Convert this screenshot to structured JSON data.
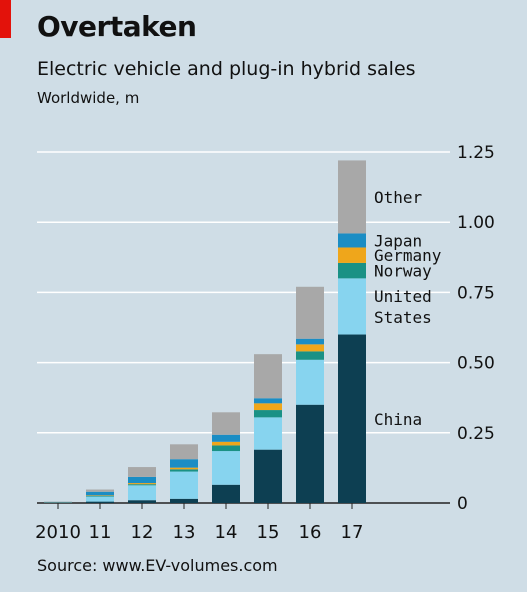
{
  "header": {
    "title": "Overtaken",
    "subtitle": "Electric vehicle and plug-in hybrid sales",
    "unit": "Worldwide, m"
  },
  "source": "Source: www.EV-volumes.com",
  "colors": {
    "background": "#cfdde6",
    "accent": "#e3120b",
    "China": "#0d3f52",
    "United States": "#87d4ef",
    "Norway": "#1a9185",
    "Germany": "#efa61b",
    "Japan": "#1b8dc4",
    "Other": "#a8a8a8"
  },
  "chart_data": {
    "type": "bar",
    "stacked": true,
    "title": "Overtaken",
    "subtitle": "Electric vehicle and plug-in hybrid sales",
    "ylabel": "Worldwide, m",
    "categories": [
      "2010",
      "11",
      "12",
      "13",
      "14",
      "15",
      "16",
      "17"
    ],
    "ylim": [
      0,
      1.25
    ],
    "yticks": [
      0,
      0.25,
      0.5,
      0.75,
      1.0,
      1.25
    ],
    "ytick_labels": [
      "0",
      "0.25",
      "0.50",
      "0.75",
      "1.00",
      "1.25"
    ],
    "y_axis_side": "right",
    "grid": true,
    "series": [
      {
        "name": "China",
        "values": [
          0.001,
          0.005,
          0.01,
          0.015,
          0.065,
          0.19,
          0.35,
          0.6
        ]
      },
      {
        "name": "United States",
        "values": [
          0.001,
          0.018,
          0.053,
          0.097,
          0.12,
          0.115,
          0.16,
          0.2
        ]
      },
      {
        "name": "Norway",
        "values": [
          0.0005,
          0.002,
          0.004,
          0.008,
          0.02,
          0.026,
          0.03,
          0.055
        ]
      },
      {
        "name": "Germany",
        "values": [
          0.0005,
          0.002,
          0.004,
          0.006,
          0.013,
          0.024,
          0.025,
          0.055
        ]
      },
      {
        "name": "Japan",
        "values": [
          0.001,
          0.013,
          0.022,
          0.03,
          0.025,
          0.018,
          0.02,
          0.05
        ]
      },
      {
        "name": "Other",
        "values": [
          0.001,
          0.008,
          0.035,
          0.053,
          0.08,
          0.157,
          0.185,
          0.26
        ]
      }
    ],
    "segment_labels": [
      {
        "series": "China",
        "lines": [
          "China"
        ]
      },
      {
        "series": "United States",
        "lines": [
          "United",
          "States"
        ]
      },
      {
        "series": "Norway",
        "lines": [
          "Norway"
        ]
      },
      {
        "series": "Germany",
        "lines": [
          "Germany"
        ]
      },
      {
        "series": "Japan",
        "lines": [
          "Japan"
        ]
      },
      {
        "series": "Other",
        "lines": [
          "Other"
        ]
      }
    ]
  }
}
